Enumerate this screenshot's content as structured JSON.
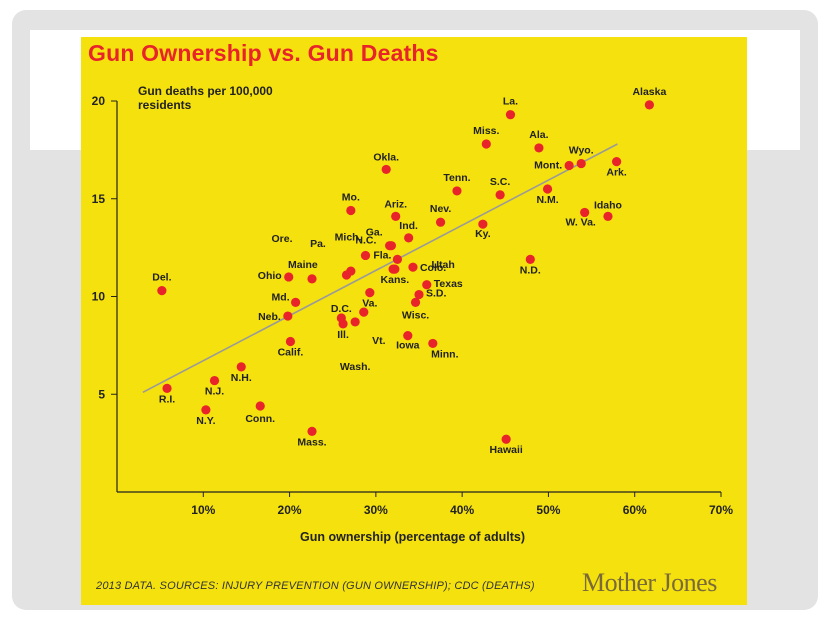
{
  "chart_data": {
    "type": "scatter",
    "title": "Gun Ownership vs. Gun Deaths",
    "ylabel": "Gun deaths per 100,000 residents",
    "xlabel": "Gun ownership (percentage of adults)",
    "xlim": [
      0,
      70
    ],
    "ylim": [
      0,
      20
    ],
    "xticks": [
      10,
      20,
      30,
      40,
      50,
      60,
      70
    ],
    "xtick_labels": [
      "10%",
      "20%",
      "30%",
      "40%",
      "50%",
      "60%",
      "70%"
    ],
    "yticks": [
      5,
      10,
      15,
      20
    ],
    "ytick_labels": [
      "5",
      "10",
      "15",
      "20"
    ],
    "trendline": {
      "x": [
        3,
        58
      ],
      "y": [
        5.1,
        17.8
      ]
    },
    "points": [
      {
        "label": "Alaska",
        "x": 61.7,
        "y": 19.8
      },
      {
        "label": "La.",
        "x": 45.6,
        "y": 19.3
      },
      {
        "label": "Miss.",
        "x": 42.8,
        "y": 17.8
      },
      {
        "label": "Ala.",
        "x": 48.9,
        "y": 17.6
      },
      {
        "label": "Wyo.",
        "x": 53.8,
        "y": 16.8
      },
      {
        "label": "Mont.",
        "x": 52.4,
        "y": 16.7
      },
      {
        "label": "Ark.",
        "x": 57.9,
        "y": 16.9
      },
      {
        "label": "Okla.",
        "x": 31.2,
        "y": 16.5
      },
      {
        "label": "Tenn.",
        "x": 39.4,
        "y": 15.4
      },
      {
        "label": "S.C.",
        "x": 44.4,
        "y": 15.2
      },
      {
        "label": "N.M.",
        "x": 49.9,
        "y": 15.5
      },
      {
        "label": "Mo.",
        "x": 27.1,
        "y": 14.4
      },
      {
        "label": "Idaho",
        "x": 56.9,
        "y": 14.1
      },
      {
        "label": "W. Va.",
        "x": 54.2,
        "y": 14.3
      },
      {
        "label": "Ariz.",
        "x": 32.3,
        "y": 14.1
      },
      {
        "label": "Nev.",
        "x": 37.5,
        "y": 13.8
      },
      {
        "label": "Ky.",
        "x": 42.4,
        "y": 13.7
      },
      {
        "label": "Ind.",
        "x": 33.8,
        "y": 13.0
      },
      {
        "label": "Ga.",
        "x": 31.6,
        "y": 12.6
      },
      {
        "label": "N.C.",
        "x": 31.8,
        "y": 12.6
      },
      {
        "label": "Mich.",
        "x": 28.8,
        "y": 12.1
      },
      {
        "label": "Pa.",
        "x": 27.1,
        "y": 11.3
      },
      {
        "label": "Ore.",
        "x": 26.6,
        "y": 11.1
      },
      {
        "label": "Fla.",
        "x": 32.5,
        "y": 11.9
      },
      {
        "label": "Utah",
        "x": 32.0,
        "y": 11.4
      },
      {
        "label": "Colo.",
        "x": 34.3,
        "y": 11.5
      },
      {
        "label": "Kans.",
        "x": 32.2,
        "y": 11.4
      },
      {
        "label": "N.D.",
        "x": 47.9,
        "y": 11.9
      },
      {
        "label": "Maine",
        "x": 22.6,
        "y": 10.9
      },
      {
        "label": "Ohio",
        "x": 19.9,
        "y": 11.0
      },
      {
        "label": "Del.",
        "x": 5.2,
        "y": 10.3
      },
      {
        "label": "Texas",
        "x": 35.9,
        "y": 10.6
      },
      {
        "label": "S.D.",
        "x": 35.0,
        "y": 10.1
      },
      {
        "label": "Md.",
        "x": 20.7,
        "y": 9.7
      },
      {
        "label": "Neb.",
        "x": 19.8,
        "y": 9.0
      },
      {
        "label": "Va.",
        "x": 29.3,
        "y": 10.2
      },
      {
        "label": "Wisc.",
        "x": 34.6,
        "y": 9.7
      },
      {
        "label": "D.C.",
        "x": 26.0,
        "y": 8.9
      },
      {
        "label": "Ill.",
        "x": 26.2,
        "y": 8.6
      },
      {
        "label": "Vt.",
        "x": 28.6,
        "y": 9.2
      },
      {
        "label": "Wash.",
        "x": 27.6,
        "y": 8.7
      },
      {
        "label": "Iowa",
        "x": 33.7,
        "y": 8.0
      },
      {
        "label": "Minn.",
        "x": 36.6,
        "y": 7.6
      },
      {
        "label": "Calif.",
        "x": 20.1,
        "y": 7.7
      },
      {
        "label": "R.I.",
        "x": 5.8,
        "y": 5.3
      },
      {
        "label": "N.J.",
        "x": 11.3,
        "y": 5.7
      },
      {
        "label": "N.H.",
        "x": 14.4,
        "y": 6.4
      },
      {
        "label": "N.Y.",
        "x": 10.3,
        "y": 4.2
      },
      {
        "label": "Conn.",
        "x": 16.6,
        "y": 4.4
      },
      {
        "label": "Mass.",
        "x": 22.6,
        "y": 3.1
      },
      {
        "label": "Hawaii",
        "x": 45.1,
        "y": 2.7
      }
    ]
  },
  "footer": "2013 DATA. SOURCES: INJURY PREVENTION (GUN OWNERSHIP); CDC (DEATHS)",
  "logo": "Mother Jones",
  "colors": {
    "background": "#f4e10e",
    "title": "#e8242a",
    "point": "#e8242a",
    "trend": "#9a9a9a"
  }
}
